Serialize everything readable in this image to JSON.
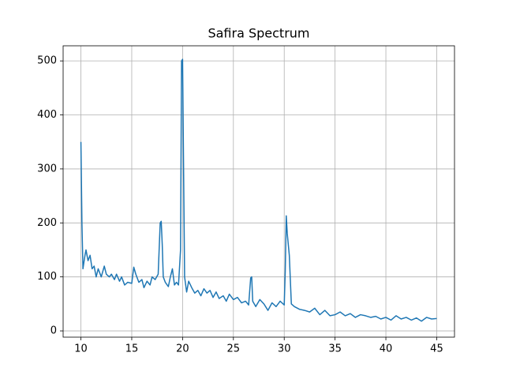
{
  "chart_data": {
    "type": "line",
    "title": "Safira Spectrum",
    "x": [
      10.0,
      10.1,
      10.2,
      10.4,
      10.5,
      10.7,
      10.9,
      11.1,
      11.3,
      11.5,
      11.7,
      12.0,
      12.3,
      12.5,
      12.8,
      13.0,
      13.3,
      13.5,
      13.8,
      14.0,
      14.3,
      14.6,
      15.0,
      15.2,
      15.4,
      15.7,
      16.0,
      16.2,
      16.5,
      16.8,
      17.0,
      17.3,
      17.6,
      17.8,
      17.9,
      18.0,
      18.1,
      18.3,
      18.6,
      18.8,
      19.0,
      19.2,
      19.4,
      19.6,
      19.8,
      19.9,
      20.0,
      20.1,
      20.2,
      20.4,
      20.6,
      20.9,
      21.2,
      21.5,
      21.8,
      22.1,
      22.4,
      22.7,
      23.0,
      23.3,
      23.6,
      24.0,
      24.3,
      24.6,
      25.0,
      25.4,
      25.8,
      26.2,
      26.5,
      26.7,
      26.8,
      26.9,
      27.2,
      27.6,
      28.0,
      28.4,
      28.8,
      29.2,
      29.6,
      30.0,
      30.1,
      30.2,
      30.3,
      30.5,
      30.7,
      31.0,
      31.5,
      32.0,
      32.5,
      33.0,
      33.5,
      34.0,
      34.5,
      35.0,
      35.5,
      36.0,
      36.5,
      37.0,
      37.5,
      38.0,
      38.5,
      39.0,
      39.5,
      40.0,
      40.5,
      41.0,
      41.5,
      42.0,
      42.5,
      43.0,
      43.5,
      44.0,
      44.5,
      45.0
    ],
    "series": [
      {
        "name": "Safira",
        "color": "#1f77b4",
        "values": [
          350,
          200,
          115,
          140,
          150,
          130,
          140,
          115,
          120,
          100,
          115,
          100,
          120,
          105,
          100,
          105,
          95,
          105,
          92,
          100,
          85,
          90,
          88,
          118,
          105,
          90,
          95,
          80,
          92,
          85,
          100,
          95,
          105,
          200,
          203,
          160,
          100,
          90,
          82,
          100,
          115,
          85,
          90,
          85,
          150,
          500,
          503,
          300,
          100,
          72,
          92,
          80,
          70,
          75,
          65,
          78,
          70,
          75,
          62,
          72,
          60,
          65,
          55,
          68,
          58,
          62,
          52,
          55,
          48,
          98,
          100,
          55,
          45,
          58,
          50,
          38,
          52,
          45,
          55,
          48,
          110,
          213,
          180,
          140,
          50,
          45,
          40,
          38,
          35,
          42,
          30,
          38,
          28,
          30,
          35,
          28,
          32,
          25,
          30,
          28,
          25,
          27,
          22,
          25,
          20,
          28,
          22,
          25,
          20,
          24,
          18,
          25,
          22,
          23
        ]
      }
    ],
    "xlim": [
      8.25,
      46.75
    ],
    "ylim": [
      -11.6,
      528
    ],
    "xticks": [
      10,
      15,
      20,
      25,
      30,
      35,
      40,
      45
    ],
    "yticks": [
      0,
      100,
      200,
      300,
      400,
      500
    ],
    "grid": true
  }
}
